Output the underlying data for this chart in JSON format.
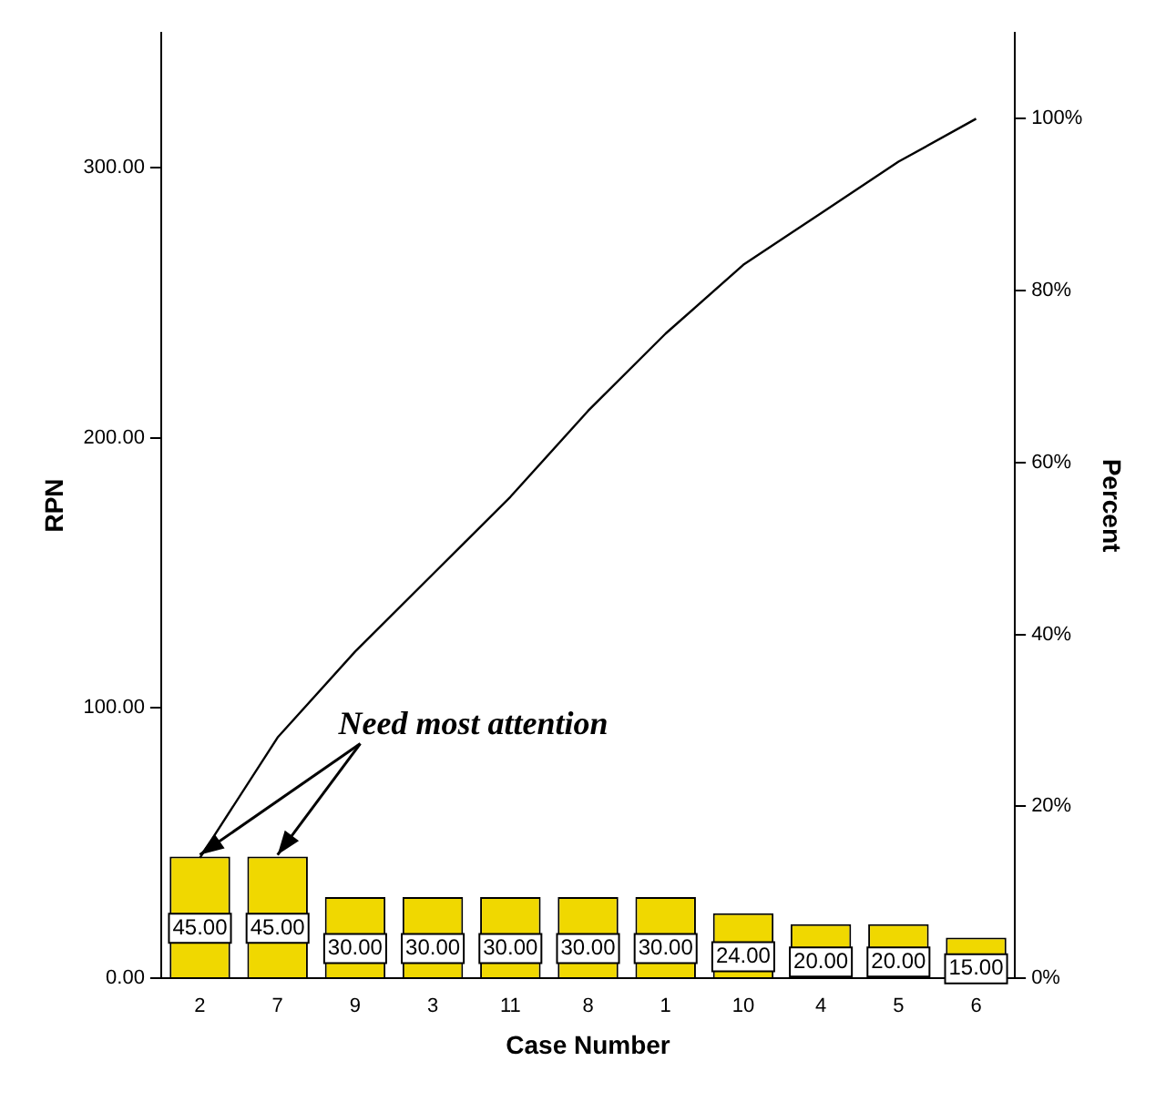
{
  "chart_data": {
    "type": "bar",
    "xlabel": "Case Number",
    "ylabel": "RPN",
    "y2label": "Percent",
    "categories": [
      "2",
      "7",
      "9",
      "3",
      "11",
      "8",
      "1",
      "10",
      "4",
      "5",
      "6"
    ],
    "series": [
      {
        "type": "bar",
        "color": "#f0d800",
        "values": [
          45,
          45,
          30,
          30,
          30,
          30,
          30,
          24,
          20,
          20,
          15
        ],
        "value_labels": [
          "45.00",
          "45.00",
          "30.00",
          "30.00",
          "30.00",
          "30.00",
          "30.00",
          "24.00",
          "20.00",
          "20.00",
          "15.00"
        ]
      },
      {
        "type": "line",
        "axis": "y2",
        "color": "#000000",
        "values": [
          14,
          28,
          38,
          47,
          56,
          66,
          75,
          83,
          89,
          95,
          100
        ]
      }
    ],
    "ylim": [
      0,
      350
    ],
    "yticks": [
      {
        "value": 0,
        "label": "0.00"
      },
      {
        "value": 100,
        "label": "100.00"
      },
      {
        "value": 200,
        "label": "200.00"
      },
      {
        "value": 300,
        "label": "300.00"
      }
    ],
    "y2lim": [
      0,
      110
    ],
    "y2ticks": [
      {
        "value": 0,
        "label": "0%"
      },
      {
        "value": 20,
        "label": "20%"
      },
      {
        "value": 40,
        "label": "40%"
      },
      {
        "value": 60,
        "label": "60%"
      },
      {
        "value": 80,
        "label": "80%"
      },
      {
        "value": 100,
        "label": "100%"
      }
    ],
    "annotations": [
      {
        "text": "Need most attention",
        "x": "2",
        "y": 45
      }
    ]
  }
}
